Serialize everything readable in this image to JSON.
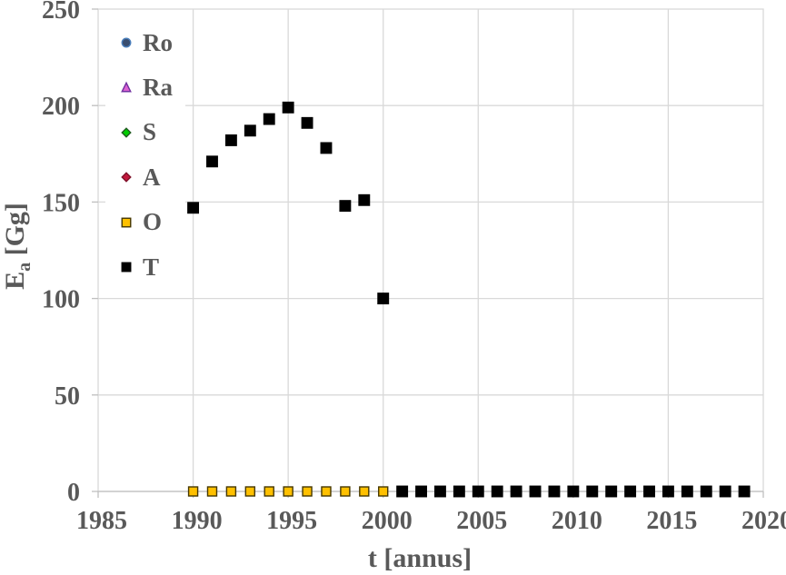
{
  "axes": {
    "x_title": "t [annus]",
    "y_title_main": "E",
    "y_title_sub": "a",
    "y_title_unit": " [Gg]"
  },
  "colors": {
    "background": "#FFFFFF",
    "text": "#595959",
    "gridline": "#D9D9D9",
    "axis_line": "#BFBFBF"
  },
  "chart_data": {
    "type": "scatter",
    "title": "",
    "xlabel": "t [annus]",
    "ylabel": "E_a [Gg]",
    "xlim": [
      1985,
      2020
    ],
    "ylim": [
      0,
      250
    ],
    "xticks": [
      1985,
      1990,
      1995,
      2000,
      2005,
      2010,
      2015,
      2020
    ],
    "yticks": [
      0,
      50,
      100,
      150,
      200,
      250
    ],
    "grid": true,
    "legend_position": "inside-top-left",
    "series": [
      {
        "name": "Ro",
        "marker": "circle",
        "fill": "#3A4E6F",
        "stroke": "#4A7EBB",
        "x": [],
        "y": []
      },
      {
        "name": "Ra",
        "marker": "triangle",
        "fill": "#DD63D2",
        "stroke": "#7030A0",
        "x": [],
        "y": []
      },
      {
        "name": "S",
        "marker": "diamond",
        "fill": "#00CC00",
        "stroke": "#215C21",
        "x": [],
        "y": []
      },
      {
        "name": "A",
        "marker": "diamond",
        "fill": "#C2183D",
        "stroke": "#7E102A",
        "x": [],
        "y": []
      },
      {
        "name": "O",
        "marker": "square",
        "fill": "#FFC000",
        "stroke": "#453700",
        "x": [
          1990,
          1991,
          1992,
          1993,
          1994,
          1995,
          1996,
          1997,
          1998,
          1999,
          2000
        ],
        "y": [
          0,
          0,
          0,
          0,
          0,
          0,
          0,
          0,
          0,
          0,
          0
        ]
      },
      {
        "name": "T",
        "marker": "square",
        "fill": "#000000",
        "stroke": "#000000",
        "x": [
          1990,
          1991,
          1992,
          1993,
          1994,
          1995,
          1996,
          1997,
          1998,
          1999,
          2000,
          2001,
          2002,
          2003,
          2004,
          2005,
          2006,
          2007,
          2008,
          2009,
          2010,
          2011,
          2012,
          2013,
          2014,
          2015,
          2016,
          2017,
          2018,
          2019
        ],
        "y": [
          147,
          171,
          182,
          187,
          193,
          199,
          191,
          178,
          148,
          151,
          100,
          0,
          0,
          0,
          0,
          0,
          0,
          0,
          0,
          0,
          0,
          0,
          0,
          0,
          0,
          0,
          0,
          0,
          0,
          0
        ]
      }
    ]
  }
}
